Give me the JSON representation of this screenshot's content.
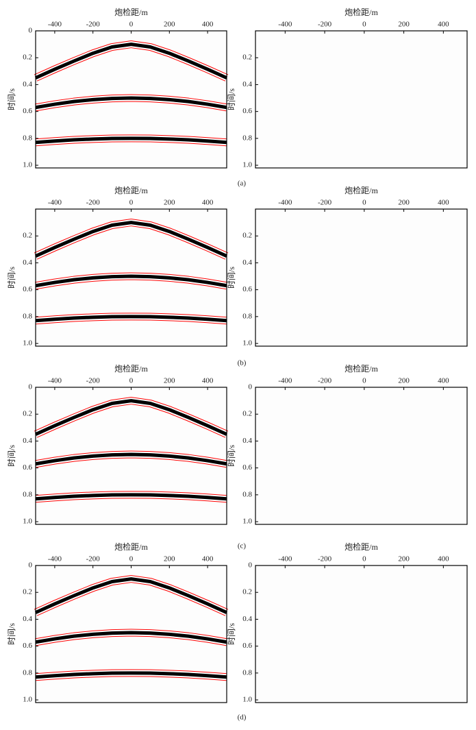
{
  "chart_data": [
    {
      "type": "line",
      "xlabel": "炮检距/m",
      "ylabel": "时间/s",
      "xlim": [
        -500,
        500
      ],
      "ylim": [
        0,
        1.02
      ],
      "xticks": [
        -400,
        -200,
        0,
        200,
        400
      ],
      "yticks": [
        0,
        0.2,
        0.4,
        0.6,
        0.8,
        {
          "value": 1,
          "label": "1.0"
        }
      ],
      "x": [
        -500,
        -400,
        -300,
        -200,
        -100,
        0,
        100,
        200,
        300,
        400,
        500
      ],
      "series": [
        {
          "color": "#000000",
          "edge_color": "#ff0000",
          "values": [
            0.35,
            0.286,
            0.225,
            0.167,
            0.12,
            0.1,
            0.12,
            0.167,
            0.225,
            0.286,
            0.35
          ]
        },
        {
          "color": "#000000",
          "edge_color": "#ff0000",
          "values": [
            0.57,
            0.546,
            0.526,
            0.512,
            0.503,
            0.5,
            0.503,
            0.512,
            0.526,
            0.546,
            0.57
          ]
        },
        {
          "color": "#000000",
          "edge_color": "#ff0000",
          "values": [
            0.83,
            0.82,
            0.811,
            0.805,
            0.801,
            0.8,
            0.801,
            0.805,
            0.811,
            0.82,
            0.83
          ]
        }
      ]
    },
    {
      "type": "line",
      "xlabel": "炮检距/m",
      "ylabel": "时间/s",
      "xlim": [
        -550,
        520
      ],
      "ylim": [
        0,
        1.02
      ],
      "xticks": [
        -400,
        -200,
        0,
        200,
        400
      ],
      "yticks": [
        0.2,
        0.4,
        0.6,
        0.8,
        {
          "value": 1,
          "label": "1.0"
        }
      ],
      "series": []
    },
    {
      "type": "line",
      "xlabel": "炮检距/m",
      "ylabel": "时间/s",
      "xlim": [
        -500,
        500
      ],
      "ylim": [
        0,
        1.02
      ],
      "xticks": [
        -400,
        -200,
        0,
        200,
        400
      ],
      "yticks": [
        0.2,
        0.4,
        0.6,
        0.8,
        {
          "value": 1,
          "label": "1.0"
        }
      ],
      "x": [
        -500,
        -400,
        -300,
        -200,
        -100,
        0,
        100,
        200,
        300,
        400,
        500
      ],
      "series": [
        {
          "color": "#000000",
          "edge_color": "#ff0000",
          "values": [
            0.35,
            0.286,
            0.225,
            0.167,
            0.12,
            0.1,
            0.12,
            0.167,
            0.225,
            0.286,
            0.35
          ]
        },
        {
          "color": "#000000",
          "edge_color": "#ff0000",
          "values": [
            0.57,
            0.546,
            0.526,
            0.512,
            0.503,
            0.5,
            0.503,
            0.512,
            0.526,
            0.546,
            0.57
          ]
        },
        {
          "color": "#000000",
          "edge_color": "#ff0000",
          "values": [
            0.83,
            0.82,
            0.811,
            0.805,
            0.801,
            0.8,
            0.801,
            0.805,
            0.811,
            0.82,
            0.83
          ]
        }
      ]
    },
    {
      "type": "line",
      "xlabel": "炮检距/m",
      "ylabel": "时间/s",
      "xlim": [
        -550,
        520
      ],
      "ylim": [
        0,
        1.02
      ],
      "xticks": [
        -400,
        -200,
        0,
        200,
        400
      ],
      "yticks": [
        0.2,
        0.4,
        0.6,
        0.8,
        {
          "value": 1,
          "label": "1.0"
        }
      ],
      "series": []
    },
    {
      "type": "line",
      "xlabel": "炮检距/m",
      "ylabel": "时间/s",
      "xlim": [
        -500,
        500
      ],
      "ylim": [
        0,
        1.02
      ],
      "xticks": [
        -400,
        -200,
        0,
        200,
        400
      ],
      "yticks": [
        0,
        0.2,
        0.4,
        0.6,
        0.8,
        {
          "value": 1,
          "label": "1.0"
        }
      ],
      "x": [
        -500,
        -400,
        -300,
        -200,
        -100,
        0,
        100,
        200,
        300,
        400,
        500
      ],
      "series": [
        {
          "color": "#000000",
          "edge_color": "#ff0000",
          "values": [
            0.35,
            0.286,
            0.225,
            0.167,
            0.12,
            0.1,
            0.12,
            0.167,
            0.225,
            0.286,
            0.35
          ]
        },
        {
          "color": "#000000",
          "edge_color": "#ff0000",
          "values": [
            0.57,
            0.546,
            0.526,
            0.512,
            0.503,
            0.5,
            0.503,
            0.512,
            0.526,
            0.546,
            0.57
          ]
        },
        {
          "color": "#000000",
          "edge_color": "#ff0000",
          "values": [
            0.83,
            0.82,
            0.811,
            0.805,
            0.801,
            0.8,
            0.801,
            0.805,
            0.811,
            0.82,
            0.83
          ]
        }
      ]
    },
    {
      "type": "line",
      "xlabel": "炮检距/m",
      "ylabel": "时间/s",
      "xlim": [
        -550,
        520
      ],
      "ylim": [
        0,
        1.02
      ],
      "xticks": [
        -400,
        -200,
        0,
        200,
        400
      ],
      "yticks": [
        0,
        0.2,
        0.4,
        0.6,
        0.8,
        {
          "value": 1,
          "label": "1.0"
        }
      ],
      "series": []
    },
    {
      "type": "line",
      "xlabel": "炮检距/m",
      "ylabel": "时间/s",
      "xlim": [
        -500,
        500
      ],
      "ylim": [
        0,
        1.02
      ],
      "xticks": [
        -400,
        -200,
        0,
        200,
        400
      ],
      "yticks": [
        0,
        0.2,
        0.4,
        0.6,
        0.8,
        {
          "value": 1,
          "label": "1.0"
        }
      ],
      "x": [
        -500,
        -400,
        -300,
        -200,
        -100,
        0,
        100,
        200,
        300,
        400,
        500
      ],
      "series": [
        {
          "color": "#000000",
          "edge_color": "#ff0000",
          "values": [
            0.35,
            0.286,
            0.225,
            0.167,
            0.12,
            0.1,
            0.12,
            0.167,
            0.225,
            0.286,
            0.35
          ]
        },
        {
          "color": "#000000",
          "edge_color": "#ff0000",
          "values": [
            0.57,
            0.546,
            0.526,
            0.512,
            0.503,
            0.5,
            0.503,
            0.512,
            0.526,
            0.546,
            0.57
          ]
        },
        {
          "color": "#000000",
          "edge_color": "#ff0000",
          "values": [
            0.83,
            0.82,
            0.811,
            0.805,
            0.801,
            0.8,
            0.801,
            0.805,
            0.811,
            0.82,
            0.83
          ]
        }
      ]
    },
    {
      "type": "line",
      "xlabel": "炮检距/m",
      "ylabel": "时间/s",
      "xlim": [
        -550,
        520
      ],
      "ylim": [
        0,
        1.02
      ],
      "xticks": [
        -400,
        -200,
        0,
        200,
        400
      ],
      "yticks": [
        0,
        0.2,
        0.4,
        0.6,
        0.8,
        {
          "value": 1,
          "label": "1.0"
        }
      ],
      "series": []
    }
  ],
  "captions": [
    "(a)",
    "(b)",
    "(c)",
    "(d)"
  ]
}
